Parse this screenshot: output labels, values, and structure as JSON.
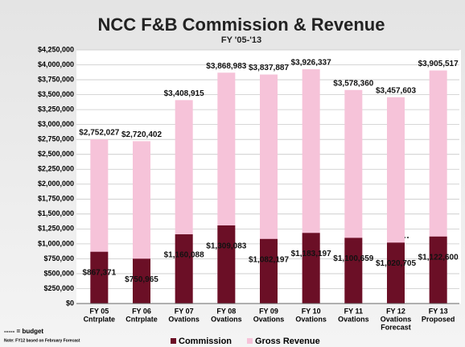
{
  "chart_data": {
    "type": "overlap-bar",
    "title": "NCC F&B Commission & Revenue",
    "subtitle": "FY '05-'13",
    "categories": [
      [
        "FY 05",
        "Cntrplate"
      ],
      [
        "FY 06",
        "Cntrplate"
      ],
      [
        "FY 07",
        "Ovations"
      ],
      [
        "FY 08",
        "Ovations"
      ],
      [
        "FY 09",
        "Ovations"
      ],
      [
        "FY 10",
        "Ovations"
      ],
      [
        "FY 11",
        "Ovations"
      ],
      [
        "FY 12",
        "Ovations",
        "Forecast"
      ],
      [
        "FY 13",
        "Proposed"
      ]
    ],
    "series": [
      {
        "name": "Commission",
        "color": "#6b0f26",
        "values": [
          867371,
          750965,
          1160088,
          1309083,
          1082197,
          1183197,
          1100659,
          1020705,
          1122600
        ],
        "value_labels": [
          "$867,371",
          "$750,965",
          "$1,160,088",
          "$1,309,083",
          "$1,082,197",
          "$1,183,197",
          "$1,100,659",
          "$1,020,705",
          "$1,122,600"
        ]
      },
      {
        "name": "Gross Revenue",
        "color": "#f6c3d9",
        "values": [
          2752027,
          2720402,
          3408915,
          3868983,
          3837887,
          3926337,
          3578360,
          3457603,
          3905517
        ],
        "value_labels": [
          "$2,752,027",
          "$2,720,402",
          "$3,408,915",
          "$3,868,983",
          "$3,837,887",
          "$3,926,337",
          "$3,578,360",
          "$3,457,603",
          "$3,905,517"
        ]
      }
    ],
    "ylim": [
      0,
      4250000
    ],
    "yticks": [
      {
        "value": 0,
        "label": "$0"
      },
      {
        "value": 250000,
        "label": "$250,000"
      },
      {
        "value": 500000,
        "label": "$500,000"
      },
      {
        "value": 750000,
        "label": "$750,000"
      },
      {
        "value": 1000000,
        "label": "$1,000,000"
      },
      {
        "value": 1250000,
        "label": "$1,250,000"
      },
      {
        "value": 1500000,
        "label": "$1,500,000"
      },
      {
        "value": 1750000,
        "label": "$1,750,000"
      },
      {
        "value": 2000000,
        "label": "$2,000,000"
      },
      {
        "value": 2250000,
        "label": "$2,250,000"
      },
      {
        "value": 2500000,
        "label": "$2,500,000"
      },
      {
        "value": 2750000,
        "label": "$2,750,000"
      },
      {
        "value": 3000000,
        "label": "$3,000,000"
      },
      {
        "value": 3250000,
        "label": "$3,250,000"
      },
      {
        "value": 3500000,
        "label": "$3,500,000"
      },
      {
        "value": 3750000,
        "label": "$3,750,000"
      },
      {
        "value": 4000000,
        "label": "$4,000,000"
      },
      {
        "value": 4250000,
        "label": "$4,250,000"
      }
    ],
    "grid": true,
    "notes": [
      "----- = budget",
      "Note: FY12 based on February Forecast"
    ]
  }
}
